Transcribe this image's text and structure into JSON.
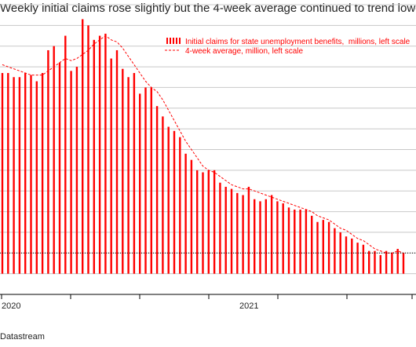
{
  "chart_data": {
    "type": "bar",
    "title": "Weekly initial claims rose slightly but the 4-week average continued to trend lower",
    "source": "Datastream",
    "xlabel": "",
    "ylabel": "",
    "x_tick_labels": [
      "2020",
      "2021"
    ],
    "series": [
      {
        "name": "Initial claims for state unemployment benefits,  millions, left scale",
        "type": "bar",
        "color": "#ff0000",
        "values": [
          0.97,
          0.97,
          0.95,
          0.95,
          0.97,
          0.96,
          0.93,
          0.97,
          1.08,
          1.1,
          1.02,
          1.15,
          0.98,
          1.0,
          1.23,
          1.2,
          1.13,
          1.15,
          1.16,
          1.04,
          1.08,
          0.99,
          0.95,
          0.97,
          0.87,
          0.9,
          0.9,
          0.81,
          0.76,
          0.71,
          0.69,
          0.66,
          0.58,
          0.55,
          0.5,
          0.49,
          0.5,
          0.5,
          0.44,
          0.42,
          0.41,
          0.39,
          0.38,
          0.42,
          0.36,
          0.35,
          0.36,
          0.38,
          0.35,
          0.34,
          0.32,
          0.31,
          0.31,
          0.31,
          0.28,
          0.25,
          0.26,
          0.25,
          0.22,
          0.2,
          0.18,
          0.17,
          0.15,
          0.14,
          0.11,
          0.11,
          0.09,
          0.11,
          0.1,
          0.12,
          0.1
        ]
      },
      {
        "name": "4-week average, million, left scale",
        "type": "line",
        "style": "dashed",
        "color": "#ff0000",
        "values": [
          1.01,
          1.0,
          0.99,
          0.98,
          0.97,
          0.96,
          0.96,
          0.96,
          0.98,
          1.0,
          1.02,
          1.04,
          1.03,
          1.04,
          1.06,
          1.08,
          1.11,
          1.13,
          1.15,
          1.13,
          1.12,
          1.09,
          1.05,
          1.01,
          0.97,
          0.93,
          0.9,
          0.88,
          0.84,
          0.79,
          0.74,
          0.69,
          0.64,
          0.6,
          0.56,
          0.52,
          0.5,
          0.49,
          0.47,
          0.45,
          0.43,
          0.42,
          0.41,
          0.41,
          0.4,
          0.39,
          0.38,
          0.37,
          0.36,
          0.35,
          0.34,
          0.33,
          0.32,
          0.31,
          0.3,
          0.28,
          0.27,
          0.26,
          0.24,
          0.22,
          0.21,
          0.19,
          0.17,
          0.16,
          0.14,
          0.12,
          0.11,
          0.1,
          0.1,
          0.11,
          0.1
        ]
      }
    ],
    "ylim": [
      -0.1,
      1.3
    ],
    "reference_line": 0.1,
    "grid": true,
    "legend_position": "top-right"
  }
}
